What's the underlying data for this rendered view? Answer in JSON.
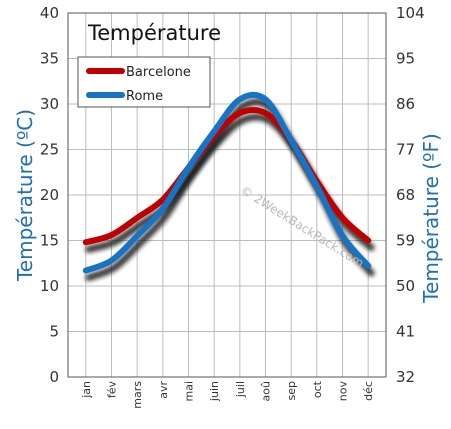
{
  "chart_data": {
    "type": "line",
    "title": "Température",
    "ylabel_left": "Température  (ºC)",
    "ylabel_right": "Température  (ºF)",
    "categories": [
      "jan",
      "fév",
      "mars",
      "avr",
      "mai",
      "juin",
      "juil",
      "aoû",
      "sep",
      "oct",
      "nov",
      "déc"
    ],
    "y_left_range": [
      0,
      40
    ],
    "y_left_ticks": [
      0,
      5,
      10,
      15,
      20,
      25,
      30,
      35,
      40
    ],
    "y_right_ticks": [
      "32",
      "41",
      "50",
      "59",
      "68",
      "77",
      "86",
      "95",
      "104"
    ],
    "grid": true,
    "legend_position": "top-left",
    "series": [
      {
        "name": "Barcelone",
        "color": "#c00000",
        "values": [
          14.8,
          15.6,
          17.5,
          19.5,
          23,
          26.5,
          29,
          29,
          26,
          21.5,
          17.5,
          15
        ]
      },
      {
        "name": "Rome",
        "color": "#1673c5",
        "values": [
          11.7,
          12.8,
          15.5,
          18.5,
          23,
          27,
          30.5,
          30.5,
          26,
          21,
          15.5,
          12.2
        ]
      }
    ],
    "watermark": "© 2WeekBackPack.com"
  }
}
